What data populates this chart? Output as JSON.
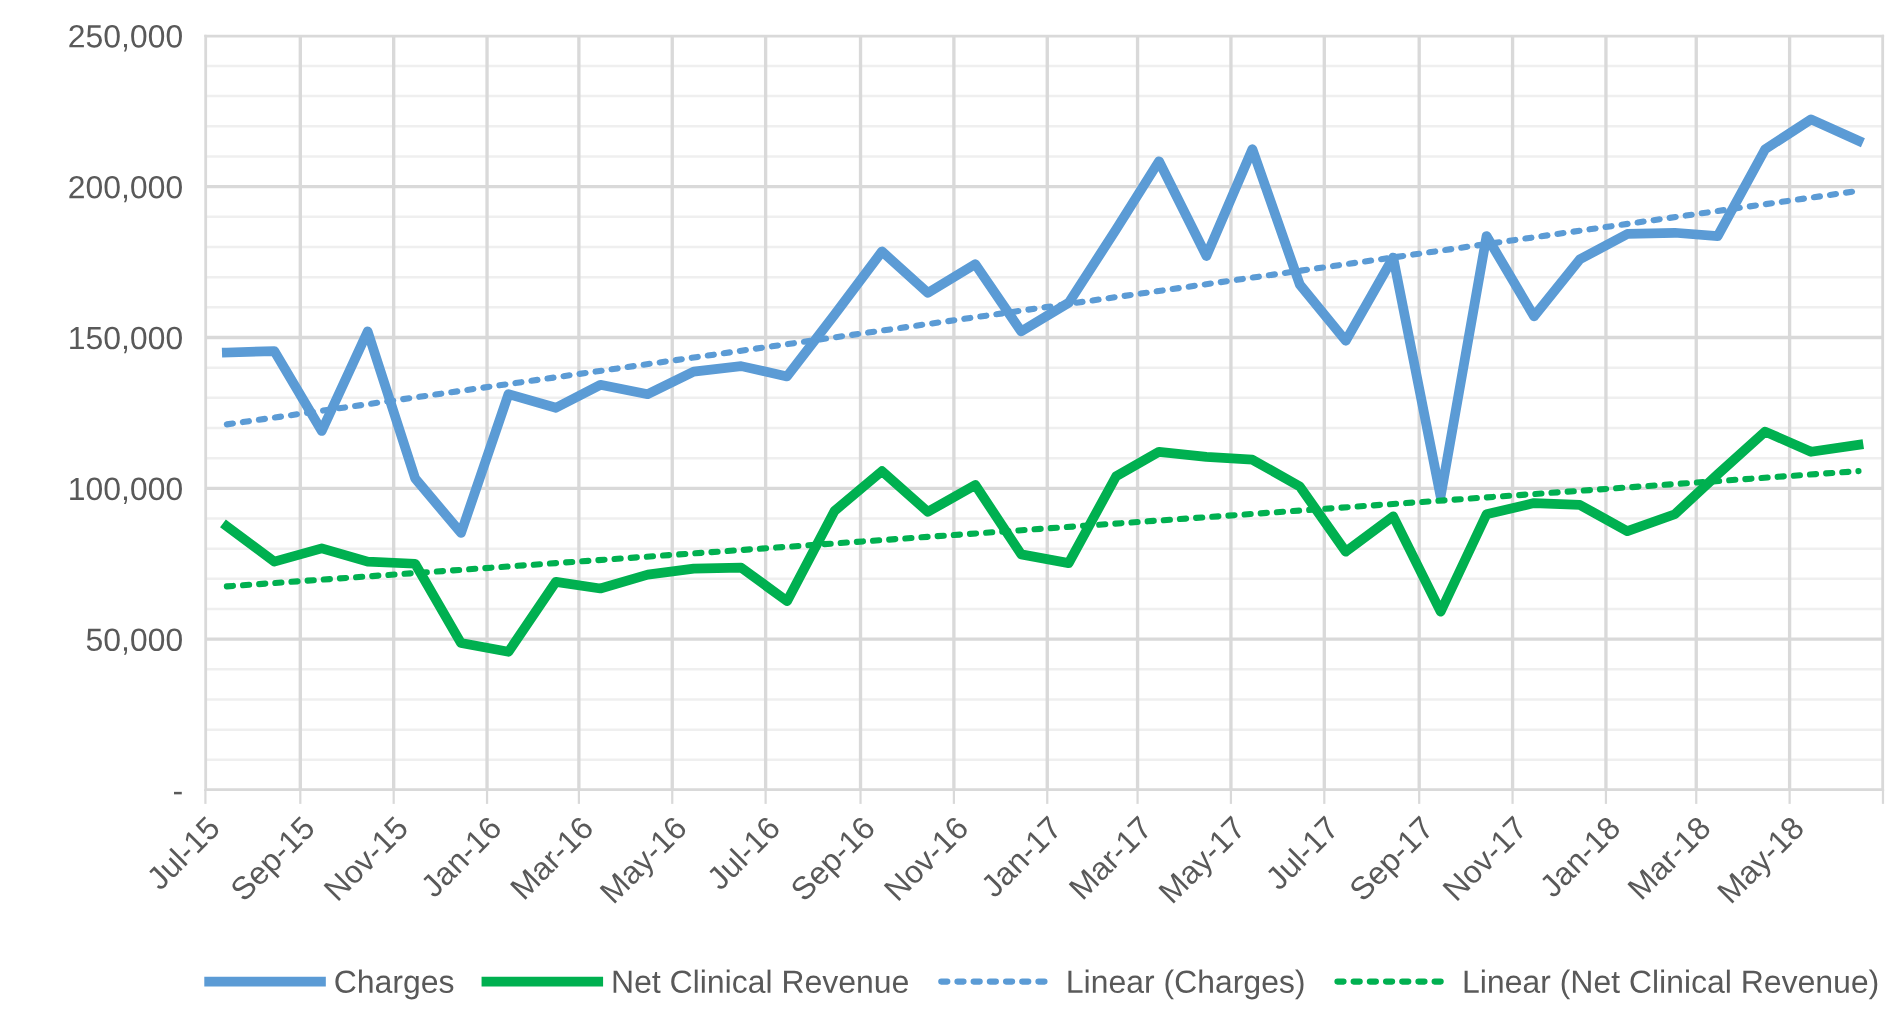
{
  "chart_data": {
    "type": "line",
    "x": [
      "2015-07-15",
      "2015-08-15",
      "2015-09-15",
      "2015-10-15",
      "2015-11-15",
      "2015-12-15",
      "2016-01-15",
      "2016-02-15",
      "2016-03-15",
      "2016-04-15",
      "2016-05-15",
      "2016-06-15",
      "2016-07-15",
      "2016-08-15",
      "2016-09-15",
      "2016-10-15",
      "2016-11-15",
      "2016-12-15",
      "2017-01-15",
      "2017-02-15",
      "2017-03-15",
      "2017-04-15",
      "2017-05-15",
      "2017-06-15",
      "2017-07-15",
      "2017-08-15",
      "2017-09-15",
      "2017-10-15",
      "2017-11-15",
      "2017-12-15",
      "2018-01-15",
      "2018-02-15",
      "2018-03-15",
      "2018-04-15",
      "2018-05-15",
      "2018-06-15"
    ],
    "series": [
      {
        "name": "Charges",
        "color": "#5b9bd5",
        "line_style": "solid",
        "values": [
          145000,
          145500,
          119000,
          152000,
          103300,
          85200,
          131200,
          126700,
          134300,
          131200,
          138700,
          140500,
          137100,
          157500,
          178500,
          164800,
          174300,
          152000,
          161500,
          185800,
          208400,
          177000,
          212400,
          167500,
          148900,
          176500,
          97300,
          183600,
          157000,
          175900,
          184300,
          184700,
          183600,
          212400,
          222300,
          215200
        ]
      },
      {
        "name": "Net Clinical Revenue",
        "color": "#00b050",
        "line_style": "solid",
        "values": [
          87400,
          75700,
          80100,
          75700,
          75000,
          48700,
          45800,
          69000,
          66800,
          71400,
          73400,
          73700,
          62600,
          92500,
          105700,
          92200,
          101100,
          78100,
          75200,
          104000,
          112100,
          110400,
          109500,
          100600,
          79000,
          90700,
          59100,
          91400,
          95100,
          94500,
          85800,
          91400,
          104600,
          118800,
          112100,
          114400
        ]
      },
      {
        "name": "Linear (Charges)",
        "color": "#5b9bd5",
        "line_style": "dotted",
        "x": [
          "2015-07-15",
          "2018-06-15"
        ],
        "values": [
          121200,
          198600
        ]
      },
      {
        "name": "Linear (Net Clinical Revenue)",
        "color": "#00b050",
        "line_style": "dotted",
        "x": [
          "2015-07-15",
          "2018-06-15"
        ],
        "values": [
          67500,
          105700
        ]
      }
    ],
    "xlim": [
      "2015-07-01",
      "2018-07-01"
    ],
    "xticks": [
      {
        "value": "2015-07-01",
        "label": "Jul-15"
      },
      {
        "value": "2015-09-01",
        "label": "Sep-15"
      },
      {
        "value": "2015-11-01",
        "label": "Nov-15"
      },
      {
        "value": "2016-01-01",
        "label": "Jan-16"
      },
      {
        "value": "2016-03-01",
        "label": "Mar-16"
      },
      {
        "value": "2016-05-01",
        "label": "May-16"
      },
      {
        "value": "2016-07-01",
        "label": "Jul-16"
      },
      {
        "value": "2016-09-01",
        "label": "Sep-16"
      },
      {
        "value": "2016-11-01",
        "label": "Nov-16"
      },
      {
        "value": "2017-01-01",
        "label": "Jan-17"
      },
      {
        "value": "2017-03-01",
        "label": "Mar-17"
      },
      {
        "value": "2017-05-01",
        "label": "May-17"
      },
      {
        "value": "2017-07-01",
        "label": "Jul-17"
      },
      {
        "value": "2017-09-01",
        "label": "Sep-17"
      },
      {
        "value": "2017-11-01",
        "label": "Nov-17"
      },
      {
        "value": "2018-01-01",
        "label": "Jan-18"
      },
      {
        "value": "2018-03-01",
        "label": "Mar-18"
      },
      {
        "value": "2018-05-01",
        "label": "May-18"
      },
      {
        "value": "2018-07-01",
        "label": null
      }
    ],
    "ylim": [
      0,
      250000
    ],
    "yticks": [
      {
        "value": 0,
        "label": "-"
      },
      {
        "value": 10000,
        "label": null
      },
      {
        "value": 20000,
        "label": null
      },
      {
        "value": 30000,
        "label": null
      },
      {
        "value": 40000,
        "label": null
      },
      {
        "value": 50000,
        "label": "50,000"
      },
      {
        "value": 60000,
        "label": null
      },
      {
        "value": 70000,
        "label": null
      },
      {
        "value": 80000,
        "label": null
      },
      {
        "value": 90000,
        "label": null
      },
      {
        "value": 100000,
        "label": "100,000"
      },
      {
        "value": 110000,
        "label": null
      },
      {
        "value": 120000,
        "label": null
      },
      {
        "value": 130000,
        "label": null
      },
      {
        "value": 140000,
        "label": null
      },
      {
        "value": 150000,
        "label": "150,000"
      },
      {
        "value": 160000,
        "label": null
      },
      {
        "value": 170000,
        "label": null
      },
      {
        "value": 180000,
        "label": null
      },
      {
        "value": 190000,
        "label": null
      },
      {
        "value": 200000,
        "label": "200,000"
      },
      {
        "value": 210000,
        "label": null
      },
      {
        "value": 220000,
        "label": null
      },
      {
        "value": 230000,
        "label": null
      },
      {
        "value": 240000,
        "label": null
      },
      {
        "value": 250000,
        "label": "250,000"
      }
    ],
    "grid": true,
    "legend": "bottom",
    "marker": "none"
  }
}
